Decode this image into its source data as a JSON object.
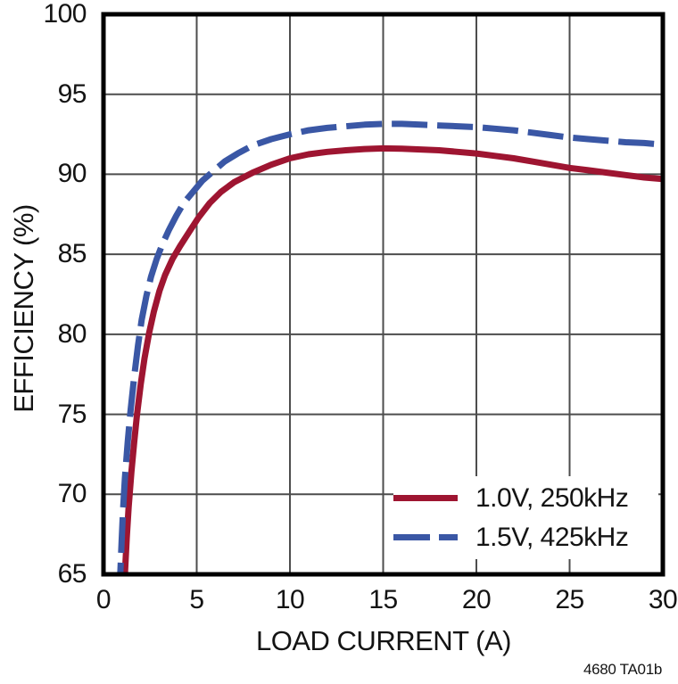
{
  "page": {
    "background": "#ffffff"
  },
  "chart_data": {
    "type": "line",
    "title": "",
    "xlabel": "LOAD CURRENT (A)",
    "ylabel": "EFFICIENCY (%)",
    "xlim": [
      0,
      30
    ],
    "ylim": [
      65,
      100
    ],
    "x_ticks": [
      0,
      5,
      10,
      15,
      20,
      25,
      30
    ],
    "y_ticks": [
      65,
      70,
      75,
      80,
      85,
      90,
      95,
      100
    ],
    "grid": true,
    "grid_color": "#4d4d4d",
    "frame_color": "#000000",
    "legend_position": "lower-right",
    "watermark": "4680 TA01b",
    "series": [
      {
        "name": "1.0V, 250kHz",
        "color": "#9e1531",
        "style": "solid",
        "points": [
          [
            1.08,
            63.5
          ],
          [
            1.15,
            65
          ],
          [
            1.25,
            67.3
          ],
          [
            1.35,
            69.2
          ],
          [
            1.5,
            71.4
          ],
          [
            1.65,
            73.3
          ],
          [
            1.8,
            75
          ],
          [
            2,
            76.9
          ],
          [
            2.2,
            78.5
          ],
          [
            2.45,
            80.1
          ],
          [
            2.7,
            81.4
          ],
          [
            3,
            82.7
          ],
          [
            3.3,
            83.7
          ],
          [
            3.7,
            84.7
          ],
          [
            4.1,
            85.5
          ],
          [
            4.6,
            86.4
          ],
          [
            5.1,
            87.3
          ],
          [
            5.7,
            88.2
          ],
          [
            6.3,
            88.9
          ],
          [
            7,
            89.5
          ],
          [
            8,
            90.1
          ],
          [
            9,
            90.6
          ],
          [
            10,
            91
          ],
          [
            11,
            91.25
          ],
          [
            12,
            91.4
          ],
          [
            13,
            91.5
          ],
          [
            14,
            91.58
          ],
          [
            15,
            91.62
          ],
          [
            16,
            91.6
          ],
          [
            17,
            91.55
          ],
          [
            18,
            91.5
          ],
          [
            19,
            91.4
          ],
          [
            20,
            91.3
          ],
          [
            21,
            91.15
          ],
          [
            22,
            91
          ],
          [
            23,
            90.8
          ],
          [
            24,
            90.6
          ],
          [
            25,
            90.4
          ],
          [
            26,
            90.25
          ],
          [
            27,
            90.1
          ],
          [
            28,
            89.95
          ],
          [
            29,
            89.8
          ],
          [
            30,
            89.7
          ]
        ]
      },
      {
        "name": "1.5V, 425kHz",
        "color": "#3a57a5",
        "style": "dashed",
        "points": [
          [
            0.85,
            63.5
          ],
          [
            0.9,
            65
          ],
          [
            0.97,
            67
          ],
          [
            1.05,
            69
          ],
          [
            1.15,
            71
          ],
          [
            1.3,
            73.3
          ],
          [
            1.45,
            75.2
          ],
          [
            1.65,
            77.4
          ],
          [
            1.85,
            79.3
          ],
          [
            2.05,
            80.9
          ],
          [
            2.3,
            82.4
          ],
          [
            2.55,
            83.6
          ],
          [
            2.85,
            84.7
          ],
          [
            3.15,
            85.6
          ],
          [
            3.5,
            86.5
          ],
          [
            3.9,
            87.4
          ],
          [
            4.3,
            88.2
          ],
          [
            4.8,
            88.9
          ],
          [
            5.3,
            89.6
          ],
          [
            5.9,
            90.2
          ],
          [
            6.5,
            90.8
          ],
          [
            7.2,
            91.3
          ],
          [
            8,
            91.8
          ],
          [
            9,
            92.2
          ],
          [
            10,
            92.5
          ],
          [
            11,
            92.75
          ],
          [
            12,
            92.9
          ],
          [
            13,
            93
          ],
          [
            14,
            93.1
          ],
          [
            15,
            93.15
          ],
          [
            16,
            93.15
          ],
          [
            17,
            93.1
          ],
          [
            18,
            93.05
          ],
          [
            19,
            93
          ],
          [
            20,
            92.95
          ],
          [
            21,
            92.85
          ],
          [
            22,
            92.75
          ],
          [
            23,
            92.6
          ],
          [
            24,
            92.45
          ],
          [
            25,
            92.3
          ],
          [
            26,
            92.2
          ],
          [
            27,
            92.1
          ],
          [
            28,
            92
          ],
          [
            29,
            91.95
          ],
          [
            30,
            91.85
          ]
        ]
      }
    ]
  }
}
